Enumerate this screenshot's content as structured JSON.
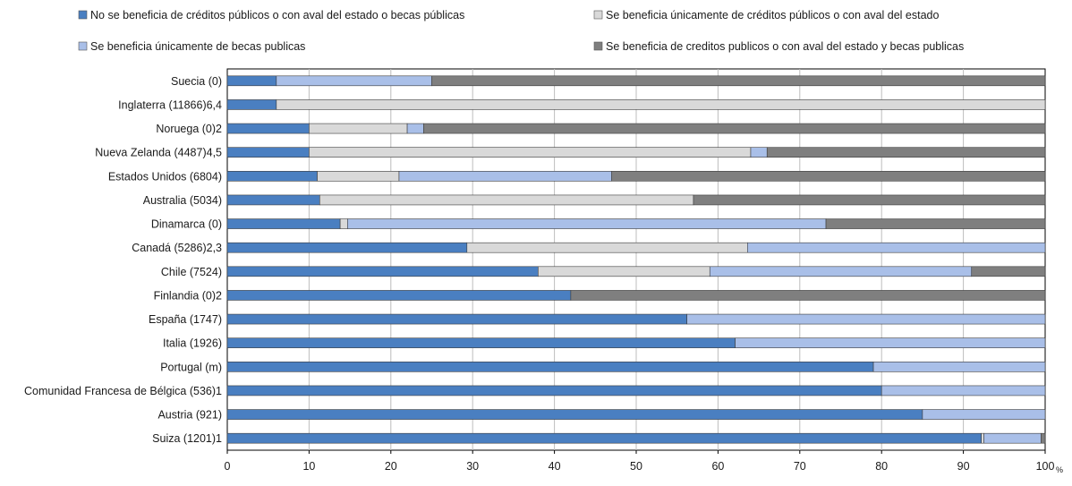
{
  "chart_data": {
    "type": "bar",
    "orientation": "horizontal",
    "stacked": true,
    "categories": [
      "Suecia (0)",
      "Inglaterra (11866)6,4",
      "Noruega (0)2",
      "Nueva Zelanda (4487)4,5",
      "Estados Unidos (6804)",
      "Australia (5034)",
      "Dinamarca (0)",
      "Canadá (5286)2,3",
      "Chile (7524)",
      "Finlandia (0)2",
      "España (1747)",
      "Italia (1926)",
      "Portugal (m)",
      "Comunidad Francesa de Bélgica (536)1",
      "Austria (921)",
      "Suiza (1201)1"
    ],
    "series": [
      {
        "name": "No se beneficia de créditos públicos o con aval del estado o becas públicas",
        "color": "#4a7fc1",
        "values": [
          6,
          6,
          10,
          10,
          11,
          11.3,
          13.8,
          29.3,
          38,
          42,
          56.2,
          62.1,
          79,
          80,
          85,
          92.2
        ]
      },
      {
        "name": "Se beneficia únicamente de créditos públicos o con aval del estado",
        "color": "#d9d9d9",
        "values": [
          0,
          94,
          12,
          54,
          10,
          45.7,
          0.9,
          34.3,
          21,
          0,
          0,
          0,
          0,
          0,
          0,
          0.3
        ]
      },
      {
        "name": "Se beneficia únicamente de becas publicas",
        "color": "#a9bfe8",
        "values": [
          19,
          0,
          2,
          2,
          26,
          0,
          58.5,
          36.4,
          32,
          0,
          43.8,
          37.9,
          21,
          20,
          15,
          7
        ]
      },
      {
        "name": "Se beneficia de creditos publicos o con aval del estado y becas publicas",
        "color": "#7f7f7f",
        "values": [
          75,
          0,
          76,
          34,
          53,
          43,
          26.8,
          0,
          9,
          58,
          0,
          0,
          0,
          0,
          0,
          0.5
        ]
      }
    ],
    "xlim": [
      0,
      100
    ],
    "xticks": [
      "0",
      "10",
      "20",
      "30",
      "40",
      "50",
      "60",
      "70",
      "80",
      "90",
      "100"
    ],
    "xunit": "%",
    "grid": true,
    "legend_position": "top"
  }
}
